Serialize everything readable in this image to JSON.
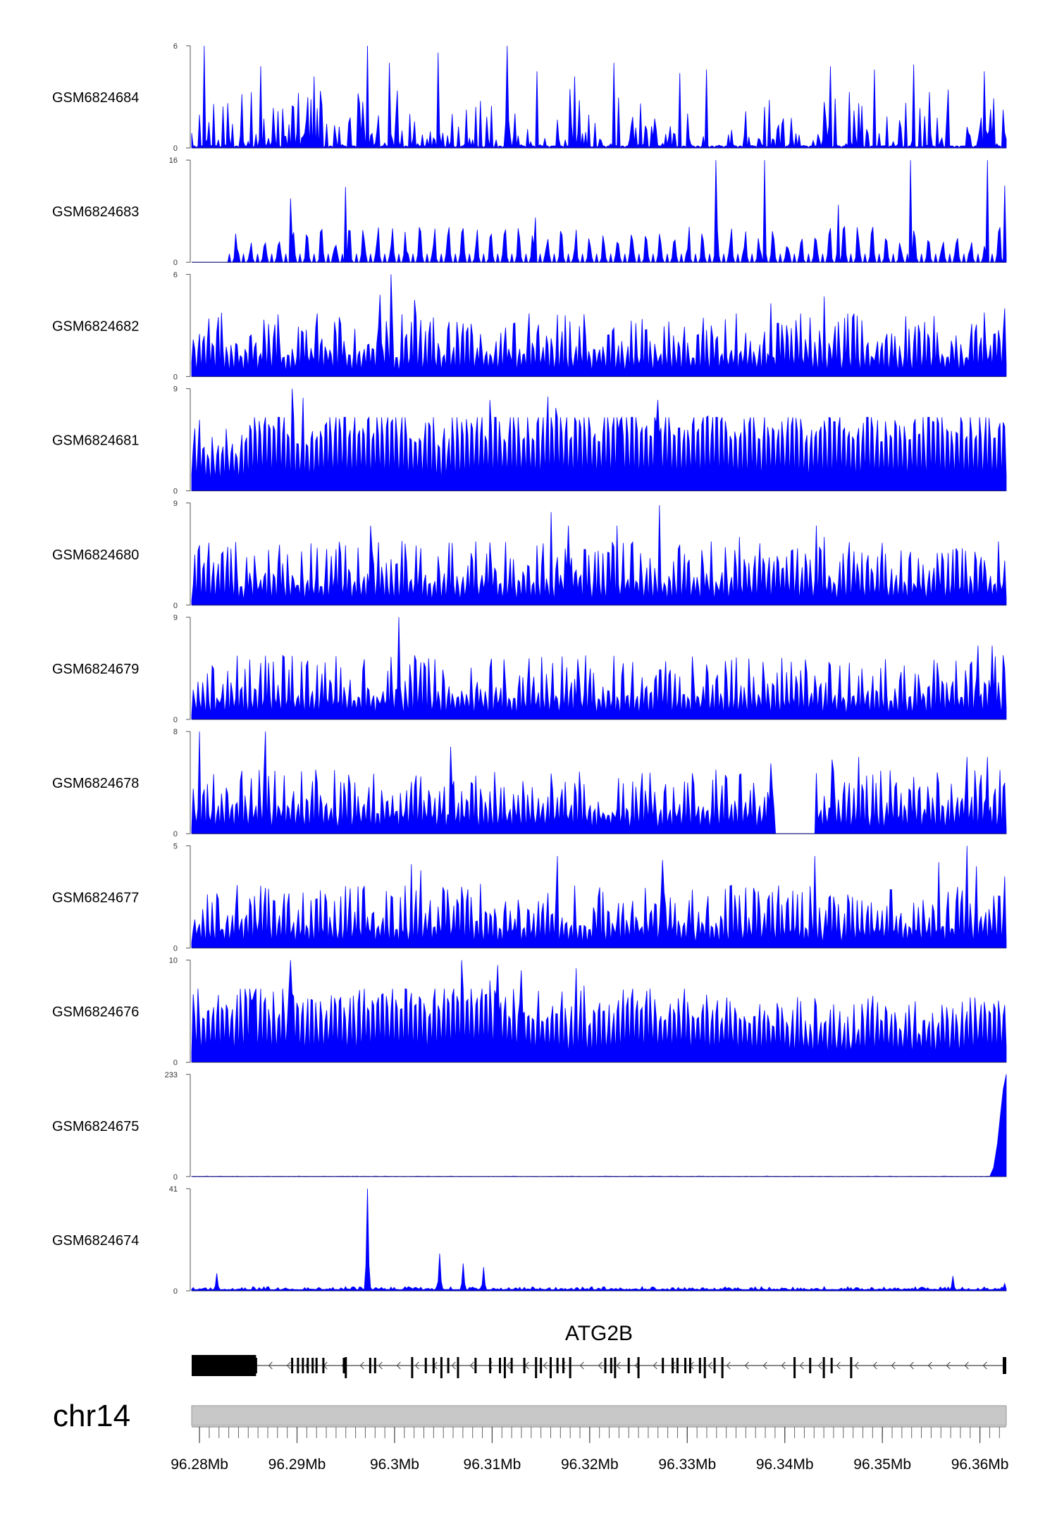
{
  "chart_data": {
    "type": "area",
    "description_visible": false,
    "x_unit": "Mb",
    "xlim": [
      96.2792,
      96.3627
    ],
    "track_color": "#0000ff",
    "tracks": [
      {
        "name": "GSM6824684",
        "ymax": 6,
        "ymin_label": "0",
        "ymax_label": "6",
        "pattern": "sparse-peaks",
        "peaks": [
          [
            96.2805,
            6.0
          ],
          [
            96.2862,
            4.8
          ],
          [
            96.2917,
            4.2
          ],
          [
            96.2972,
            6.0
          ],
          [
            96.2995,
            5.0
          ],
          [
            96.3045,
            5.6
          ],
          [
            96.3115,
            6.0
          ],
          [
            96.3146,
            4.5
          ],
          [
            96.3185,
            4.2
          ],
          [
            96.3225,
            5.0
          ],
          [
            96.3293,
            4.4
          ],
          [
            96.332,
            4.6
          ],
          [
            96.3447,
            4.8
          ],
          [
            96.3492,
            4.6
          ],
          [
            96.3532,
            4.9
          ],
          [
            96.3605,
            4.5
          ]
        ]
      },
      {
        "name": "GSM6824683",
        "ymax": 16,
        "ymin_label": "0",
        "ymax_label": "16",
        "pattern": "triangular-gaps",
        "start": 96.2828,
        "peaks": [
          [
            96.2893,
            10.0
          ],
          [
            96.295,
            11.8
          ],
          [
            96.3144,
            7.0
          ],
          [
            96.333,
            16.0
          ],
          [
            96.3379,
            16.0
          ],
          [
            96.3455,
            9.0
          ],
          [
            96.3529,
            16.0
          ],
          [
            96.3608,
            16.0
          ],
          [
            96.3625,
            12.0
          ]
        ]
      },
      {
        "name": "GSM6824682",
        "ymax": 6,
        "ymin_label": "0",
        "ymax_label": "6",
        "pattern": "dense-peaks",
        "peaks": [
          [
            96.2997,
            6.0
          ],
          [
            96.302,
            4.5
          ],
          [
            96.2985,
            4.8
          ],
          [
            96.344,
            4.7
          ],
          [
            96.3385,
            4.3
          ],
          [
            96.3625,
            4.0
          ]
        ]
      },
      {
        "name": "GSM6824681",
        "ymax": 9,
        "ymin_label": "0",
        "ymax_label": "9",
        "pattern": "broad-signal",
        "peaks": [
          [
            96.2895,
            9.0
          ],
          [
            96.2906,
            8.2
          ],
          [
            96.3098,
            8.0
          ],
          [
            96.3157,
            8.3
          ],
          [
            96.3165,
            7.3
          ],
          [
            96.3232,
            6.2
          ],
          [
            96.327,
            8.0
          ],
          [
            96.3322,
            6.6
          ],
          [
            96.3543,
            3.8
          ],
          [
            96.3572,
            4.0
          ]
        ]
      },
      {
        "name": "GSM6824680",
        "ymax": 9,
        "ymin_label": "0",
        "ymax_label": "9",
        "pattern": "dense-peaks",
        "peaks": [
          [
            96.2975,
            7.0
          ],
          [
            96.3161,
            8.2
          ],
          [
            96.3178,
            7.0
          ],
          [
            96.3228,
            7.0
          ],
          [
            96.3272,
            8.8
          ],
          [
            96.3353,
            6.0
          ],
          [
            96.3433,
            7.0
          ],
          [
            96.344,
            6.0
          ],
          [
            96.3575,
            5.0
          ]
        ]
      },
      {
        "name": "GSM6824679",
        "ymax": 9,
        "ymin_label": "0",
        "ymax_label": "9",
        "pattern": "dense-peaks",
        "peaks": [
          [
            96.3005,
            9.0
          ],
          [
            96.2996,
            5.5
          ],
          [
            96.3188,
            5.3
          ],
          [
            96.3598,
            6.5
          ],
          [
            96.3613,
            6.5
          ],
          [
            96.3625,
            4.5
          ]
        ]
      },
      {
        "name": "GSM6824678",
        "ymax": 8,
        "ymin_label": "0",
        "ymax_label": "8",
        "pattern": "dense-peaks",
        "gap": [
          96.339,
          96.3432
        ],
        "peaks": [
          [
            96.28,
            8.0
          ],
          [
            96.2868,
            8.0
          ],
          [
            96.3058,
            6.8
          ],
          [
            96.3386,
            5.5
          ],
          [
            96.3449,
            5.8
          ],
          [
            96.3475,
            6.0
          ],
          [
            96.3587,
            6.0
          ],
          [
            96.3608,
            6.0
          ]
        ]
      },
      {
        "name": "GSM6824677",
        "ymax": 5,
        "ymin_label": "0",
        "ymax_label": "5",
        "pattern": "dense-peaks",
        "peaks": [
          [
            96.3018,
            4.1
          ],
          [
            96.3027,
            3.8
          ],
          [
            96.3167,
            4.5
          ],
          [
            96.3274,
            4.3
          ],
          [
            96.343,
            4.5
          ],
          [
            96.3558,
            4.2
          ],
          [
            96.3587,
            5.0
          ],
          [
            96.3597,
            4.0
          ],
          [
            96.3625,
            3.5
          ]
        ]
      },
      {
        "name": "GSM6824676",
        "ymax": 10,
        "ymin_label": "0",
        "ymax_label": "10",
        "pattern": "broad-signal",
        "peaks": [
          [
            96.2893,
            10.0
          ],
          [
            96.2855,
            6.2
          ],
          [
            96.3068,
            10.0
          ],
          [
            96.3106,
            9.5
          ],
          [
            96.3097,
            8.0
          ],
          [
            96.313,
            9.0
          ],
          [
            96.3186,
            9.2
          ],
          [
            96.3194,
            7.5
          ],
          [
            96.3258,
            7.0
          ]
        ]
      },
      {
        "name": "GSM6824675",
        "ymax": 233,
        "ymin_label": "0",
        "ymax_label": "233",
        "pattern": "terminal-ramp",
        "ramp": [
          [
            96.361,
            0
          ],
          [
            96.3614,
            20
          ],
          [
            96.3618,
            75
          ],
          [
            96.3621,
            140
          ],
          [
            96.3624,
            200
          ],
          [
            96.3627,
            233
          ]
        ]
      },
      {
        "name": "GSM6824674",
        "ymax": 41,
        "ymin_label": "0",
        "ymax_label": "41",
        "pattern": "few-peaks",
        "peaks": [
          [
            96.2818,
            7.0
          ],
          [
            96.2972,
            41.0
          ],
          [
            96.3047,
            15.0
          ],
          [
            96.3071,
            11.0
          ],
          [
            96.3092,
            9.5
          ],
          [
            96.3572,
            6.0
          ],
          [
            96.3625,
            3.0
          ]
        ]
      }
    ],
    "gene": {
      "name": "ATG2B",
      "strand": "-",
      "start": 96.2792,
      "end": 96.3627,
      "thick_block": [
        96.2792,
        96.2858
      ],
      "exons": [
        96.2858,
        96.2895,
        96.2901,
        96.2906,
        96.2911,
        96.2916,
        96.292,
        96.2927,
        96.2948,
        96.295,
        96.2975,
        96.298,
        96.3018,
        96.3032,
        96.304,
        96.3048,
        96.3055,
        96.3065,
        96.3083,
        96.3098,
        96.3108,
        96.3113,
        96.312,
        96.3133,
        96.3145,
        96.315,
        96.316,
        96.3167,
        96.3173,
        96.318,
        96.3216,
        96.3222,
        96.3226,
        96.324,
        96.325,
        96.3275,
        96.3285,
        96.329,
        96.3298,
        96.3303,
        96.3313,
        96.3318,
        96.3328,
        96.3336,
        96.341,
        96.3426,
        96.344,
        96.3448,
        96.3468,
        96.3625
      ],
      "exon_tall": [
        96.286,
        96.2926,
        96.295,
        96.3018,
        96.3048,
        96.3065,
        96.3113,
        96.3145,
        96.316,
        96.318,
        96.3226,
        96.325,
        96.3318,
        96.3336,
        96.341,
        96.344,
        96.3468
      ]
    },
    "chromosome": {
      "label": "chr14",
      "xticks": [
        96.28,
        96.29,
        96.3,
        96.31,
        96.32,
        96.33,
        96.34,
        96.35,
        96.36
      ],
      "xtick_labels": [
        "96.28Mb",
        "96.29Mb",
        "96.3Mb",
        "96.31Mb",
        "96.32Mb",
        "96.33Mb",
        "96.34Mb",
        "96.35Mb",
        "96.36Mb"
      ],
      "minor_step": 0.001
    }
  }
}
